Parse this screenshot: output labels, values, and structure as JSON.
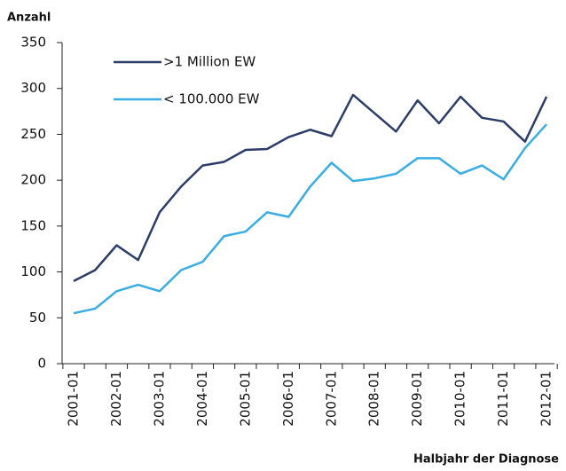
{
  "chart_data": {
    "type": "line",
    "y_label": "Anzahl",
    "x_label": "Halbjahr der Diagnose",
    "categories": [
      "2001-01",
      null,
      "2002-01",
      null,
      "2003-01",
      null,
      "2004-01",
      null,
      "2005-01",
      null,
      "2006-01",
      null,
      "2007-01",
      null,
      "2008-01",
      null,
      "2009-01",
      null,
      "2010-01",
      null,
      "2011-01",
      null,
      "2012-01"
    ],
    "series": [
      {
        "name": ">1 Million EW",
        "color": "#2b3d68",
        "values": [
          90,
          102,
          129,
          113,
          165,
          193,
          216,
          220,
          233,
          234,
          247,
          255,
          248,
          293,
          273,
          253,
          287,
          262,
          291,
          268,
          264,
          242,
          291
        ]
      },
      {
        "name": "< 100.000 EW",
        "color": "#3aaee2",
        "values": [
          55,
          60,
          79,
          86,
          79,
          102,
          111,
          139,
          144,
          165,
          160,
          193,
          219,
          199,
          202,
          207,
          224,
          224,
          207,
          216,
          201,
          235,
          261
        ]
      }
    ],
    "ylim": [
      0,
      350
    ],
    "yticks": [
      0,
      50,
      100,
      150,
      200,
      250,
      300,
      350
    ],
    "grid": false
  }
}
